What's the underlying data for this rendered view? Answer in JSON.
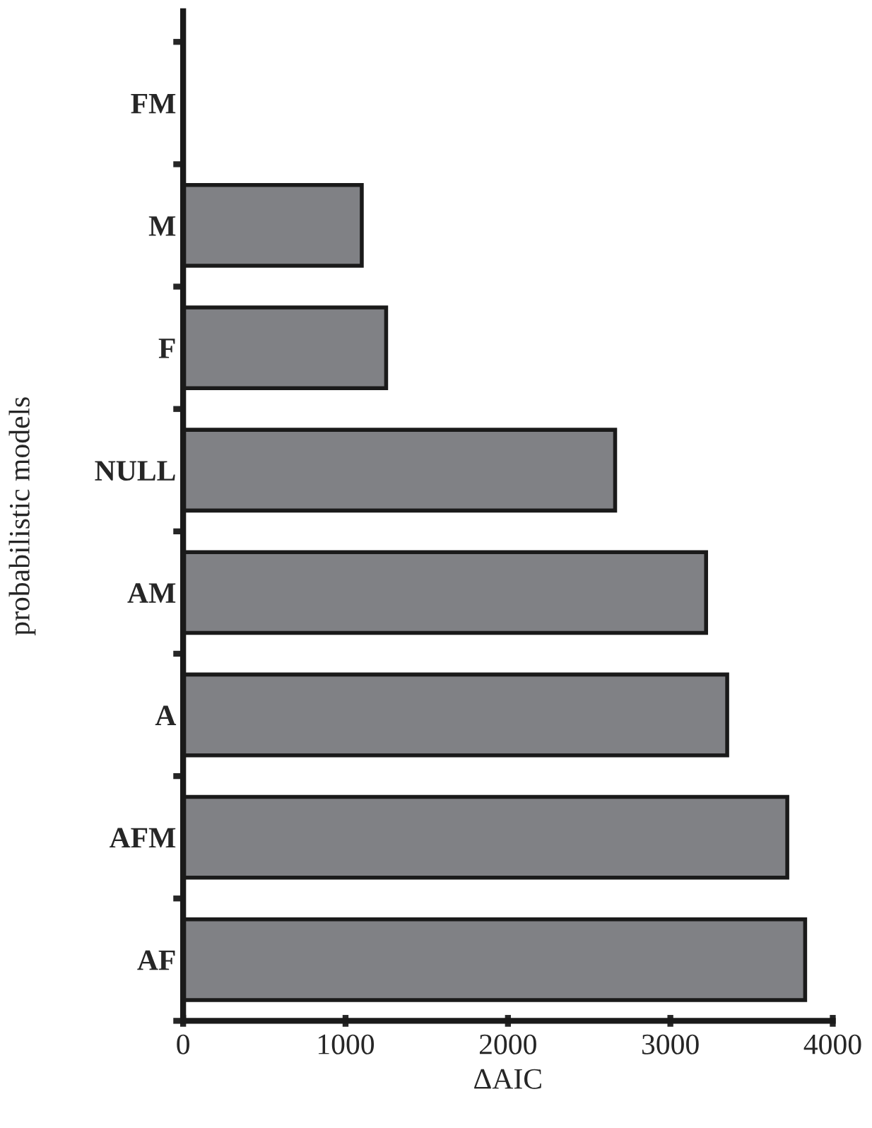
{
  "chart_data": {
    "type": "bar",
    "orientation": "horizontal",
    "xlabel": "ΔAIC",
    "ylabel": "probabilistic models",
    "categories": [
      "FM",
      "M",
      "F",
      "NULL",
      "AM",
      "A",
      "AFM",
      "AF"
    ],
    "values": [
      0,
      1100,
      1250,
      2660,
      3220,
      3350,
      3720,
      3830
    ],
    "color": "#808185",
    "xlim": [
      0,
      4000
    ],
    "xticks": [
      0,
      1000,
      2000,
      3000,
      4000
    ],
    "grid": false,
    "legend": false
  }
}
